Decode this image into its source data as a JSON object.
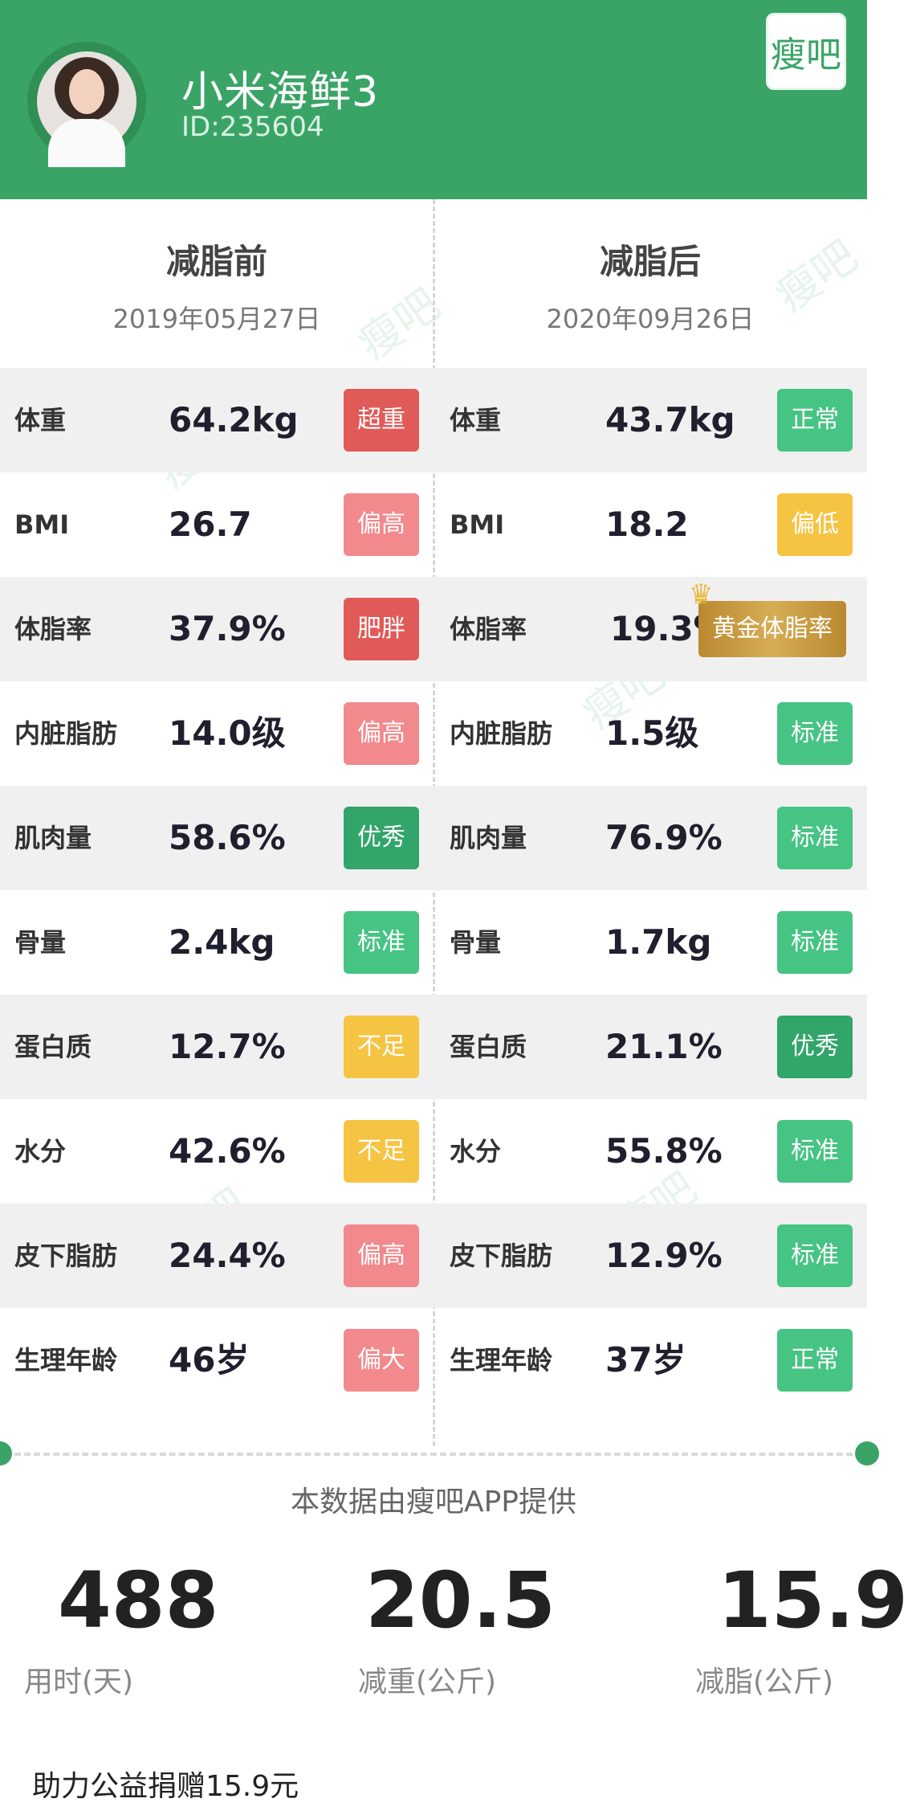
{
  "header": {
    "user_name": "小米海鲜3",
    "user_id": "ID:235604",
    "logo_text": "瘦吧"
  },
  "before": {
    "title": "减脂前",
    "date": "2019年05月27日"
  },
  "after": {
    "title": "减脂后",
    "date": "2020年09月26日"
  },
  "colors": {
    "brand_green": "#3aa466",
    "red": "#e05a57",
    "pink": "#f2898d",
    "green": "#3fbf7a",
    "dark_green": "#32a56a",
    "yellow": "#f6c443",
    "gold": "#c69a3a"
  },
  "rows": [
    {
      "label": "体重",
      "before_value": "64.2kg",
      "before_badge": "超重",
      "before_color": "#e05a57",
      "after_value": "43.7kg",
      "after_badge": "正常",
      "after_color": "#46c483"
    },
    {
      "label": "BMI",
      "before_value": "26.7",
      "before_badge": "偏高",
      "before_color": "#f2898d",
      "after_value": "18.2",
      "after_badge": "偏低",
      "after_color": "#f6c443"
    },
    {
      "label": "体脂率",
      "before_value": "37.9%",
      "before_badge": "肥胖",
      "before_color": "#e05a57",
      "after_value": "19.3%",
      "after_badge": "黄金体脂率",
      "after_color": "#c69a3a"
    },
    {
      "label": "内脏脂肪",
      "before_value": "14.0级",
      "before_badge": "偏高",
      "before_color": "#f2898d",
      "after_value": "1.5级",
      "after_badge": "标准",
      "after_color": "#46c483"
    },
    {
      "label": "肌肉量",
      "before_value": "58.6%",
      "before_badge": "优秀",
      "before_color": "#32a56a",
      "after_value": "76.9%",
      "after_badge": "标准",
      "after_color": "#46c483"
    },
    {
      "label": "骨量",
      "before_value": "2.4kg",
      "before_badge": "标准",
      "before_color": "#46c483",
      "after_value": "1.7kg",
      "after_badge": "标准",
      "after_color": "#46c483"
    },
    {
      "label": "蛋白质",
      "before_value": "12.7%",
      "before_badge": "不足",
      "before_color": "#f6c443",
      "after_value": "21.1%",
      "after_badge": "优秀",
      "after_color": "#32a56a"
    },
    {
      "label": "水分",
      "before_value": "42.6%",
      "before_badge": "不足",
      "before_color": "#f6c443",
      "after_value": "55.8%",
      "after_badge": "标准",
      "after_color": "#46c483"
    },
    {
      "label": "皮下脂肪",
      "before_value": "24.4%",
      "before_badge": "偏高",
      "before_color": "#f2898d",
      "after_value": "12.9%",
      "after_badge": "标准",
      "after_color": "#46c483"
    },
    {
      "label": "生理年龄",
      "before_value": "46岁",
      "before_badge": "偏大",
      "before_color": "#f2898d",
      "after_value": "37岁",
      "after_badge": "正常",
      "after_color": "#46c483"
    }
  ],
  "provider": "本数据由瘦吧APP提供",
  "stats": [
    {
      "value": "488",
      "label": "用时(天)"
    },
    {
      "value": "20.5",
      "label": "减重(公斤)"
    },
    {
      "value": "15.9",
      "label": "减脂(公斤)"
    }
  ],
  "donation": "助力公益捐赠15.9元"
}
